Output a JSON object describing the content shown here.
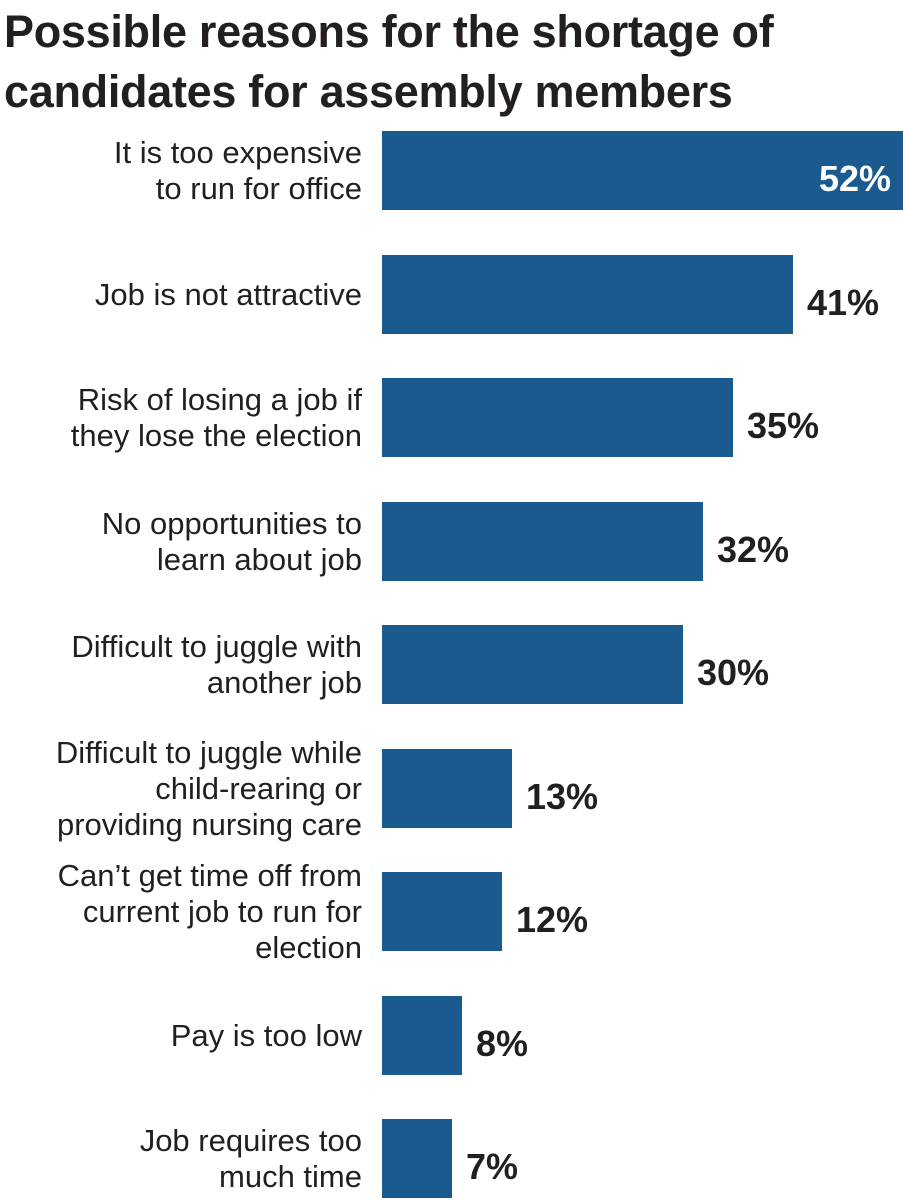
{
  "chart_data": {
    "type": "bar",
    "orientation": "horizontal",
    "title": "Possible reasons for the shortage of candidates for assembly members",
    "categories": [
      "It is too expensive\nto run for office",
      "Job is not attractive",
      "Risk of losing a job if\nthey lose the election",
      "No opportunities to\nlearn about job",
      "Difficult to juggle with\nanother job",
      "Difficult to juggle while\nchild-rearing or\nproviding nursing care",
      "Can’t get time off from\ncurrent job to run for\nelection",
      "Pay is too low",
      "Job requires too\nmuch time"
    ],
    "values": [
      52,
      41,
      35,
      32,
      30,
      13,
      12,
      8,
      7
    ],
    "value_labels": [
      "52%",
      "41%",
      "35%",
      "32%",
      "30%",
      "13%",
      "12%",
      "8%",
      "7%"
    ],
    "unit": "%",
    "xlim": [
      0,
      52
    ],
    "grid": false,
    "bar_color": "#1b5a8e",
    "label_color": "#231f20"
  }
}
